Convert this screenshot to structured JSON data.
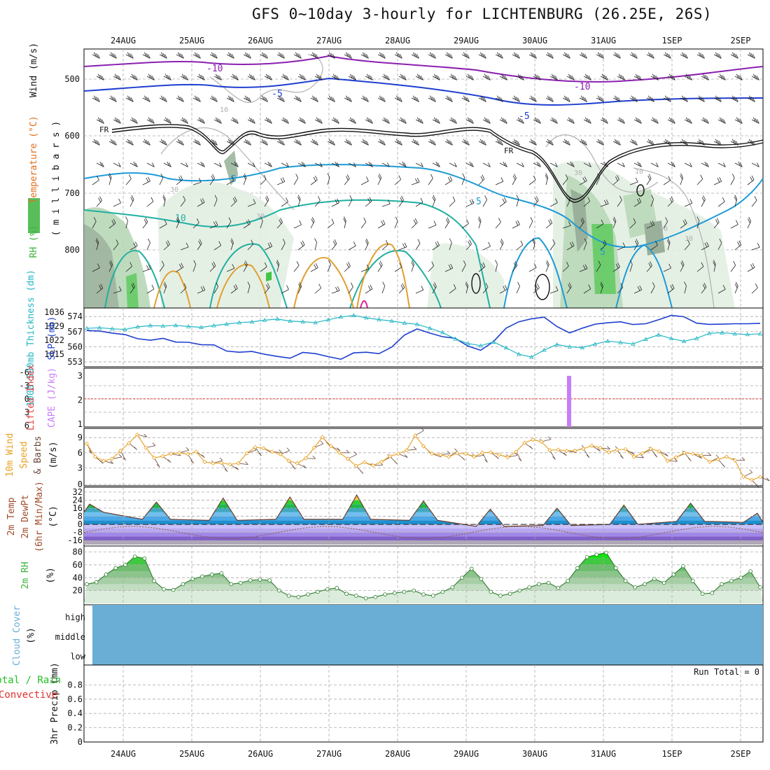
{
  "title": "GFS 0~10day 3-hourly for LICHTENBURG (26.25E, 26S)",
  "date_labels": [
    "24AUG",
    "25AUG",
    "26AUG",
    "27AUG",
    "28AUG",
    "29AUG",
    "30AUG",
    "31AUG",
    "1SEP",
    "2SEP"
  ],
  "colors": {
    "grid": "#aaaaaa",
    "slp": "#1f3fcf",
    "thickness": "#21b6c4",
    "cape": "#c77ef7",
    "lifted_index": "#e04040",
    "wind_speed": "#e8a020",
    "barb": "#6a4a3a",
    "temp_line": "#6a3a2a",
    "rh_green": "#3cb33c",
    "cloud": "#6aaed6",
    "precip_total": "#20c020",
    "precip_conv": "#e03030",
    "contour_purple": "#8a20b0",
    "contour_blue": "#1f3fcf",
    "contour_cyan": "#1e9bd6",
    "contour_teal": "#20b0a0",
    "contour_orange": "#e0a030"
  },
  "panels": {
    "upper_air": {
      "labels": {
        "wind": "Wind (m/s)",
        "temperature": "Temperature (°C)",
        "rh": "RH (%)",
        "millibars": "( m i l l i b a r s )"
      },
      "y_ticks": [
        "500",
        "600",
        "700",
        "800"
      ],
      "contour_labels": [
        "-10",
        "-5",
        "-5",
        "-10",
        "FR",
        "FR",
        "5",
        "-5",
        "5",
        "10",
        "10",
        "5",
        "30",
        "30",
        "30",
        "30",
        "50",
        "10"
      ]
    },
    "thickness_slp": {
      "labels": {
        "thickness": "1000-500mb Thickness (dm)",
        "slp": "SLP (mb)"
      },
      "left_ticks": [
        "574",
        "567",
        "560",
        "553"
      ],
      "right_ticks": [
        "1036",
        "1029",
        "1022",
        "1015"
      ]
    },
    "cape_li": {
      "labels": {
        "li": "Lifted Index",
        "cape": "CAPE (J/kg)"
      },
      "left_ticks": [
        "-6",
        "-3",
        "0",
        "3",
        "6"
      ],
      "right_ticks": [
        "3",
        "2",
        "1"
      ]
    },
    "wind10": {
      "labels": {
        "main": "10m Wind",
        "speed": "Speed",
        "barbs": "& Barbs",
        "unit": "(m/s)"
      },
      "ticks": [
        "9",
        "6",
        "3",
        "0"
      ]
    },
    "temp2m": {
      "labels": {
        "temp": "2m Temp",
        "dew": "2m DewPt",
        "minmax": "(6hr Min/Max)",
        "unit": "(°C)"
      },
      "ticks": [
        "32",
        "24",
        "16",
        "8",
        "0",
        "-8",
        "-16"
      ]
    },
    "rh2m": {
      "labels": {
        "main": "2m RH",
        "unit": "(%)"
      },
      "ticks": [
        "80",
        "60",
        "40",
        "20"
      ]
    },
    "cloud": {
      "labels": {
        "main": "Cloud Cover",
        "unit": "(%)"
      },
      "levels": [
        "high",
        "middle",
        "low"
      ]
    },
    "precip": {
      "labels": {
        "total": "Total / Rain",
        "conv": "Convective",
        "main": "3hr Precip (mm)"
      },
      "ticks": [
        "0.8",
        "0.6",
        "0.4",
        "0.2",
        "0"
      ],
      "run_total": "Run Total = 0"
    }
  },
  "chart_data": [
    {
      "type": "line",
      "title": "1000-500mb Thickness (dm) / SLP (mb)",
      "x_start": "23AUG 12Z",
      "x_step_hours": 6,
      "series": [
        {
          "name": "Thickness (dm)",
          "axis": "left",
          "ylim": [
            552,
            576
          ],
          "values": [
            568.5,
            568.8,
            568.3,
            568.0,
            569.2,
            569.8,
            569.6,
            569.9,
            569.4,
            569.0,
            569.8,
            570.5,
            571.2,
            571.5,
            572.3,
            572.8,
            571.9,
            571.6,
            571.2,
            572.5,
            573.8,
            574.5,
            573.4,
            572.6,
            571.9,
            571.0,
            570.4,
            568.6,
            566.6,
            563.6,
            561.5,
            560.5,
            562.2,
            559.5,
            556.5,
            555.2,
            558.5,
            561.0,
            560.0,
            559.6,
            561.2,
            562.6,
            562.0,
            561.3,
            563.5,
            565.5,
            563.8,
            562.5,
            563.9,
            566.2,
            566.5,
            566.0,
            565.7,
            566.0
          ]
        },
        {
          "name": "SLP (mb)",
          "axis": "right",
          "ylim": [
            1010,
            1036
          ],
          "values": [
            1026.8,
            1026.6,
            1025.5,
            1024.8,
            1022.7,
            1021.9,
            1022.9,
            1021.0,
            1020.9,
            1019.7,
            1019.6,
            1016.5,
            1015.9,
            1016.3,
            1014.9,
            1013.8,
            1012.9,
            1015.8,
            1015.2,
            1013.7,
            1012.4,
            1015.6,
            1015.9,
            1015.2,
            1018.5,
            1024.5,
            1027.6,
            1025.5,
            1023.7,
            1022.9,
            1019.0,
            1016.9,
            1021.2,
            1028.0,
            1031.2,
            1032.7,
            1033.5,
            1028.8,
            1025.6,
            1028.0,
            1030.0,
            1030.7,
            1031.2,
            1029.8,
            1030.2,
            1032.2,
            1034.4,
            1033.7,
            1030.5,
            1029.9,
            1030.0,
            1030.2,
            1030.2,
            1030.4
          ]
        }
      ]
    },
    {
      "type": "bar",
      "title": "CAPE (J/kg) / Lifted Index",
      "annotations": [
        {
          "date": "30AUG 18Z",
          "cape": 3.0
        }
      ],
      "lifted_index_baseline": 0,
      "ylim_cape": [
        1,
        3.2
      ],
      "ylim_li": [
        6,
        -6
      ]
    },
    {
      "type": "line",
      "title": "10m Wind Speed & Barbs (m/s)",
      "ylim": [
        0,
        10
      ],
      "values": [
        7.8,
        5.2,
        4.4,
        4.8,
        6.4,
        7.9,
        9.6,
        7.0,
        5.0,
        5.3,
        5.8,
        6.0,
        5.7,
        6.2,
        4.2,
        3.9,
        4.0,
        3.7,
        3.9,
        5.9,
        7.1,
        6.9,
        6.2,
        5.7,
        4.4,
        3.9,
        4.9,
        7.0,
        9.1,
        7.3,
        6.0,
        4.8,
        3.4,
        4.1,
        3.5,
        4.2,
        5.3,
        5.8,
        6.5,
        9.4,
        7.3,
        5.8,
        5.6,
        5.2,
        5.9,
        5.8,
        5.2,
        6.0,
        6.1,
        5.6,
        5.1,
        6.2,
        8.0,
        8.6,
        8.2,
        6.5,
        6.6,
        6.4,
        6.4,
        6.8,
        7.4,
        7.0,
        6.1,
        6.6,
        6.7,
        5.2,
        5.9,
        6.8,
        6.3,
        4.4,
        5.1,
        6.0,
        5.8,
        5.5,
        4.2,
        4.7,
        5.2,
        4.5,
        1.2,
        0.6,
        1.2
      ]
    },
    {
      "type": "area",
      "title": "2m Temp / 2m DewPt (6hr Min/Max) (°C)",
      "ylim": [
        -20,
        34
      ],
      "temp_peaks": [
        20,
        22,
        26,
        27,
        29,
        23,
        15,
        16,
        19,
        21,
        11
      ],
      "temp_troughs": [
        12,
        5,
        4,
        5,
        5,
        4,
        -2,
        -1,
        0,
        3,
        2
      ],
      "dewpoint_range": [
        -14,
        -2
      ]
    },
    {
      "type": "area",
      "title": "2m RH (%)",
      "ylim": [
        0,
        85
      ],
      "values": [
        30,
        33,
        45,
        55,
        60,
        73,
        70,
        35,
        22,
        21,
        30,
        38,
        42,
        45,
        47,
        30,
        32,
        36,
        37,
        36,
        20,
        12,
        10,
        14,
        18,
        22,
        24,
        15,
        12,
        8,
        10,
        14,
        16,
        18,
        20,
        14,
        12,
        18,
        25,
        40,
        54,
        38,
        18,
        12,
        15,
        20,
        25,
        30,
        32,
        24,
        35,
        55,
        72,
        76,
        79,
        55,
        35,
        25,
        30,
        38,
        32,
        45,
        58,
        35,
        15,
        16,
        30,
        35,
        40,
        50,
        25
      ]
    },
    {
      "type": "area",
      "title": "3hr Precip (mm)",
      "ylim": [
        0,
        1
      ],
      "values": [],
      "run_total": 0
    }
  ]
}
